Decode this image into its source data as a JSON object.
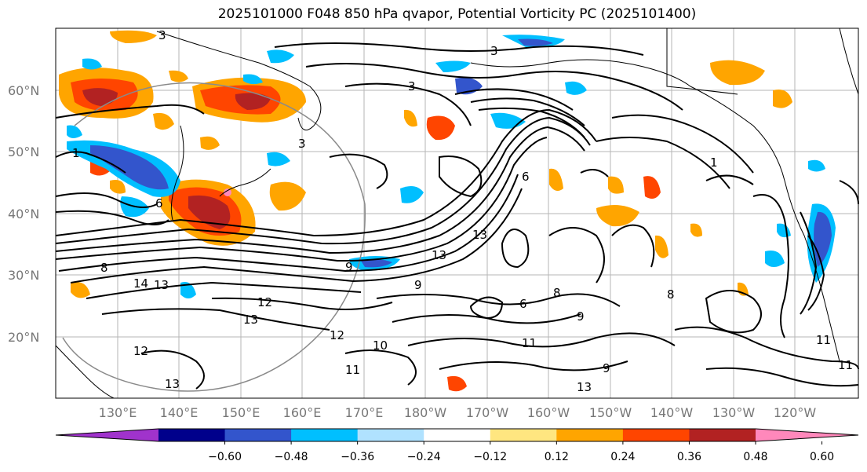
{
  "title": "2025101000 F048 850 hPa qvapor, Potential Vorticity PC (2025101400)",
  "map": {
    "lat_labels": [
      "60°N",
      "50°N",
      "40°N",
      "30°N",
      "20°N"
    ],
    "lon_labels": [
      "130°E",
      "140°E",
      "150°E",
      "160°E",
      "170°E",
      "180°W",
      "170°W",
      "160°W",
      "150°W",
      "140°W",
      "130°W",
      "120°W"
    ],
    "contour_labels": [
      "3",
      "3",
      "3",
      "3",
      "6",
      "6",
      "1",
      "1",
      "6",
      "13",
      "13",
      "13",
      "14",
      "13",
      "12",
      "12",
      "12",
      "11",
      "13",
      "9",
      "9",
      "9",
      "10",
      "11",
      "8",
      "8",
      "8",
      "11",
      "11",
      "13",
      "9"
    ]
  },
  "colorbar": {
    "colors": [
      "#a033cc",
      "#00008b",
      "#3355cc",
      "#00bfff",
      "#b0e2ff",
      "#ffffff",
      "#ffe680",
      "#ffa500",
      "#ff4500",
      "#b22222",
      "#ff88bb"
    ],
    "tick_labels": [
      "−0.60",
      "−0.48",
      "−0.36",
      "−0.24",
      "−0.12",
      "0.12",
      "0.24",
      "0.36",
      "0.48",
      "0.60"
    ]
  }
}
